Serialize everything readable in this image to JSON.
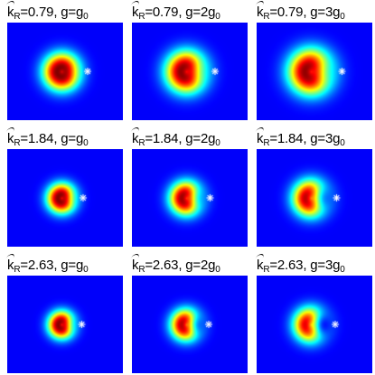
{
  "panels": [
    {
      "k_val": "0.79",
      "g_sub": "0",
      "g_mult": "",
      "shape": {
        "size": 1.0,
        "notch": 0.15
      }
    },
    {
      "k_val": "0.79",
      "g_sub": "0",
      "g_mult": "2",
      "shape": {
        "size": 1.12,
        "notch": 0.35
      }
    },
    {
      "k_val": "0.79",
      "g_sub": "0",
      "g_mult": "3",
      "shape": {
        "size": 1.22,
        "notch": 0.4
      }
    },
    {
      "k_val": "1.84",
      "g_sub": "0",
      "g_mult": "",
      "shape": {
        "size": 0.8,
        "notch": 0.3
      }
    },
    {
      "k_val": "1.84",
      "g_sub": "0",
      "g_mult": "2",
      "shape": {
        "size": 0.9,
        "notch": 0.55
      }
    },
    {
      "k_val": "1.84",
      "g_sub": "0",
      "g_mult": "3",
      "shape": {
        "size": 0.98,
        "notch": 0.72
      }
    },
    {
      "k_val": "2.63",
      "g_sub": "0",
      "g_mult": "",
      "shape": {
        "size": 0.74,
        "notch": 0.4
      }
    },
    {
      "k_val": "2.63",
      "g_sub": "0",
      "g_mult": "2",
      "shape": {
        "size": 0.84,
        "notch": 0.72
      }
    },
    {
      "k_val": "2.63",
      "g_sub": "0",
      "g_mult": "3",
      "shape": {
        "size": 0.92,
        "notch": 0.9
      }
    }
  ],
  "colors": {
    "background": "#0a23a5",
    "cross": "#ffffff"
  }
}
